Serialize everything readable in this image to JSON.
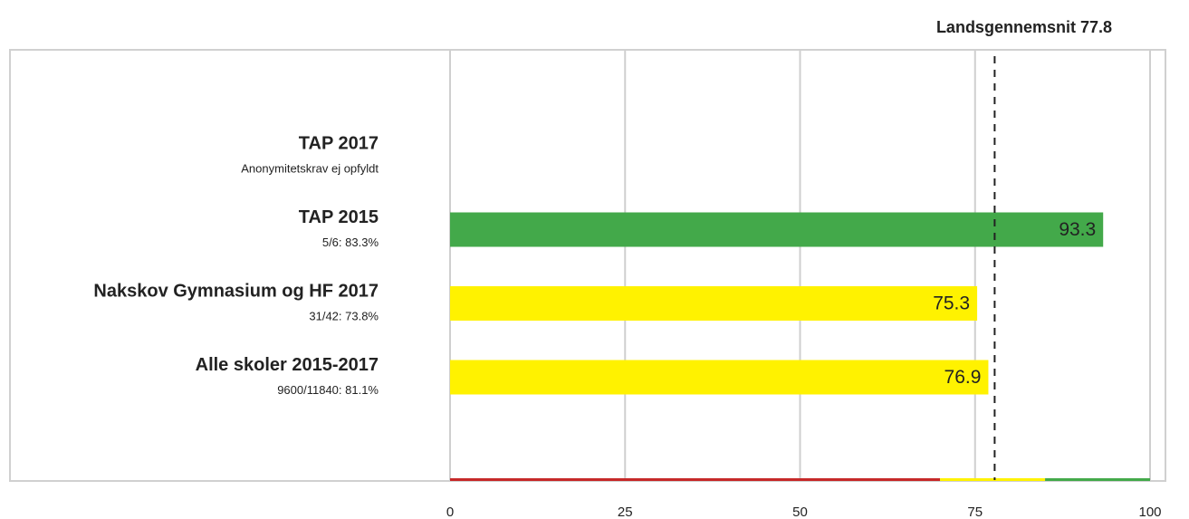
{
  "chart_data": {
    "type": "bar",
    "orientation": "horizontal",
    "title": "Landsgennemsnit 77.8",
    "mean": 77.8,
    "categories": [
      "TAP 2017",
      "TAP 2015",
      "Nakskov Gymnasium og HF 2017",
      "Alle skoler 2015-2017"
    ],
    "sublabels": [
      "Anonymitetskrav ej opfyldt",
      "5/6: 83.3%",
      "31/42: 73.8%",
      "9600/11840: 81.1%"
    ],
    "values": [
      null,
      93.3,
      75.3,
      76.9
    ],
    "bands": [
      {
        "from": 0,
        "to": 70,
        "color": "#c62828"
      },
      {
        "from": 70,
        "to": 85,
        "color": "#fff200"
      },
      {
        "from": 85,
        "to": 100,
        "color": "#43a94a"
      }
    ],
    "xlim": [
      0,
      100
    ],
    "xticks": [
      0,
      25,
      50,
      75,
      100
    ],
    "grid": true
  }
}
